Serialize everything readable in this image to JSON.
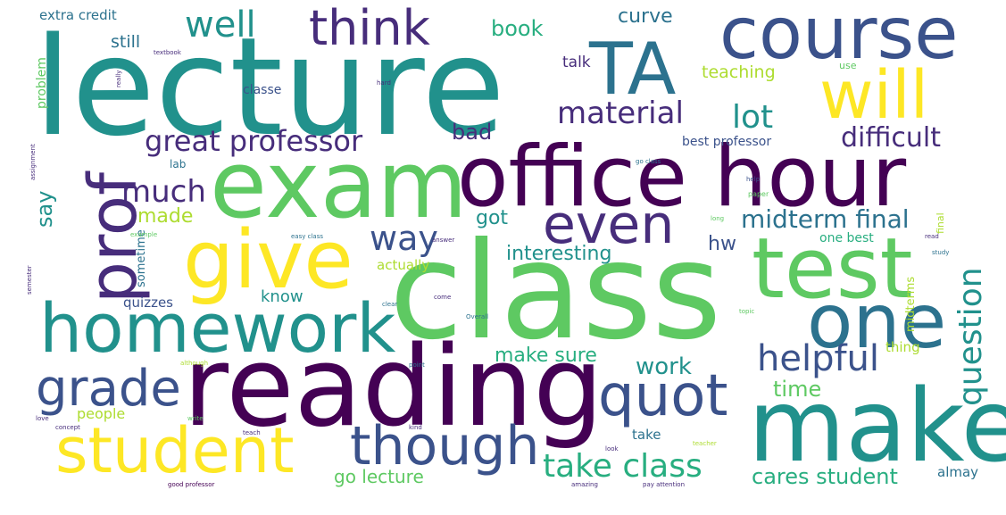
{
  "palette": {
    "p1": "#440154",
    "p2": "#472d7b",
    "p3": "#3b528b",
    "p4": "#2c728e",
    "p5": "#21918c",
    "p6": "#28ae80",
    "p7": "#5ec962",
    "p8": "#addc30",
    "p9": "#fde725"
  },
  "words": {
    "lecture": "lecture",
    "course": "course",
    "ta": "TA",
    "will": "will",
    "think": "think",
    "well": "well",
    "exam": "exam",
    "office_hour": "office hour",
    "give": "give",
    "class": "class",
    "test": "test",
    "one": "one",
    "homework": "homework",
    "reading": "reading",
    "make": "make",
    "student": "student",
    "though": "though",
    "quot": "quot",
    "grade": "grade",
    "prof": "prof",
    "even": "even",
    "great_professor": "great professor",
    "material": "material",
    "lot": "lot",
    "difficult": "difficult",
    "much": "much",
    "way": "way",
    "midterm_final": "midterm final",
    "helpful": "helpful",
    "question": "question",
    "take_class": "take class",
    "time": "time",
    "work": "work",
    "make_sure": "make sure",
    "cares_student": "cares student",
    "go_lecture": "go lecture",
    "extra_credit": "extra credit",
    "book": "book",
    "curve": "curve",
    "still": "still",
    "talk": "talk",
    "teaching": "teaching",
    "classe": "classe",
    "bad": "bad",
    "best_professor": "best professor",
    "say": "say",
    "made": "made",
    "got": "got",
    "hw": "hw",
    "interesting": "interesting",
    "actually": "actually",
    "know": "know",
    "quizzes": "quizzes",
    "people": "people",
    "take": "take",
    "almay": "almay",
    "one_best": "one best",
    "sometime": "sometime",
    "problem": "problem",
    "lab": "lab",
    "use": "use",
    "thing": "thing",
    "midterms": "midterms",
    "final": "final",
    "easy_class": "easy class",
    "go_class": "go class",
    "paper": "paper",
    "study": "study",
    "overall": "Overall",
    "help": "help",
    "read": "read",
    "although": "although",
    "point": "point",
    "teacher": "teacher",
    "concept": "concept",
    "example": "example",
    "assignment": "assignment",
    "textbook": "textbook",
    "love": "love",
    "teach": "teach",
    "good_professor": "good professor",
    "amazing": "amazing",
    "pay_attention": "pay attention",
    "really": "really",
    "come": "come",
    "topic": "topic",
    "clear": "clear",
    "write": "write",
    "answer": "answer",
    "long": "long",
    "hard": "hard",
    "kind": "kind",
    "look": "look",
    "semester": "semester"
  }
}
